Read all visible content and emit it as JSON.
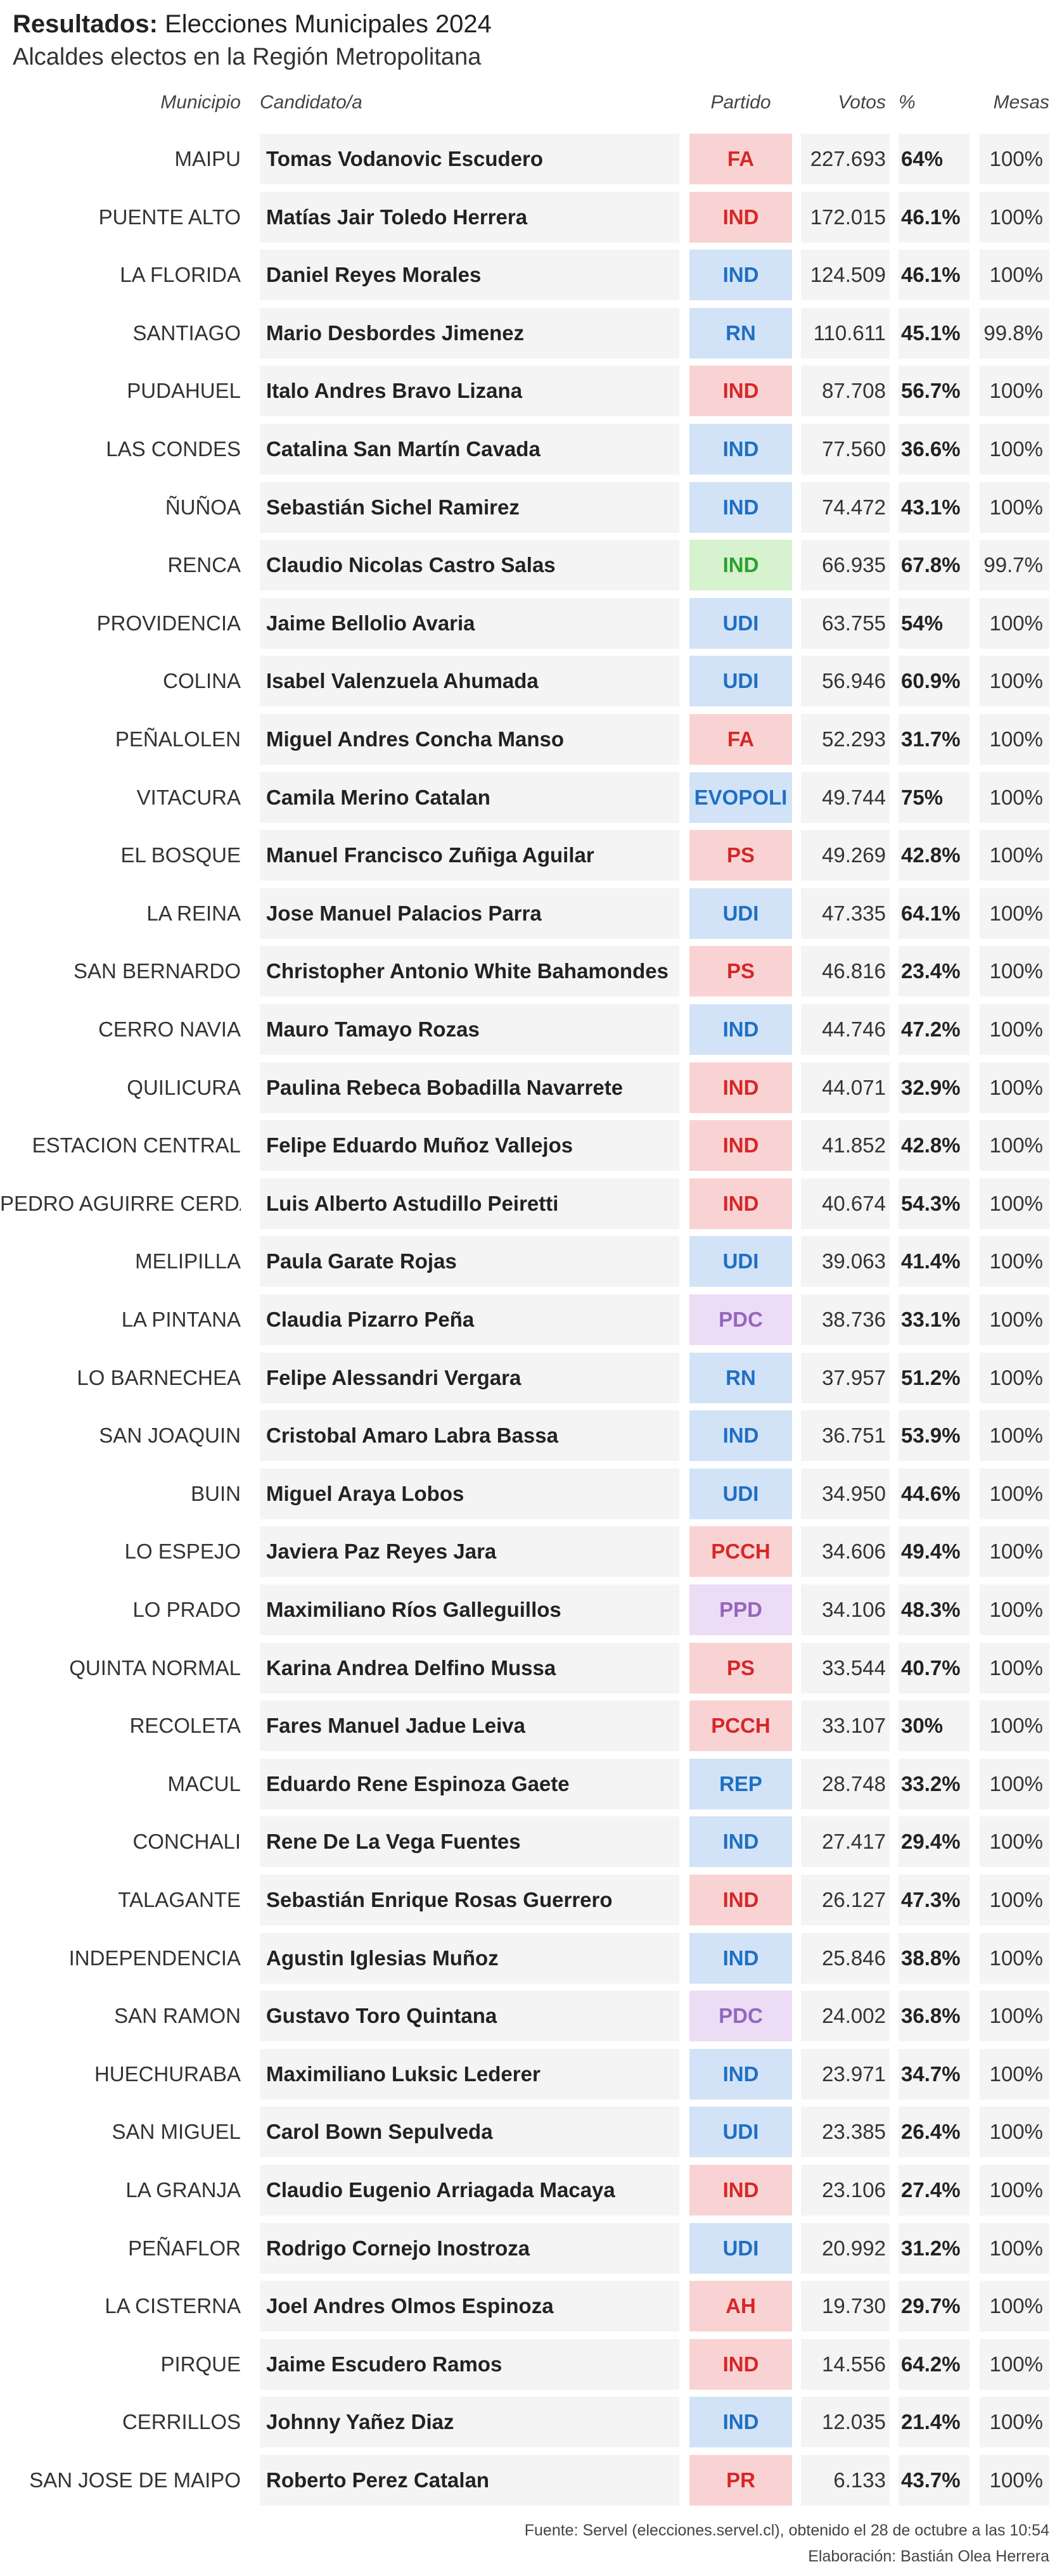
{
  "chart_data": {
    "type": "table",
    "title_bold": "Resultados:",
    "title_rest": "Elecciones Municipales 2024",
    "subtitle": "Alcaldes electos en la Región Metropolitana",
    "columns": [
      "Municipio",
      "Candidato/a",
      "Partido",
      "Votos",
      "%",
      "Mesas"
    ],
    "party_colors": {
      "red": {
        "bg": "#f9d3d3",
        "fg": "#d62728"
      },
      "blue": {
        "bg": "#d2e3f7",
        "fg": "#1f6fc4"
      },
      "green": {
        "bg": "#d6f2cf",
        "fg": "#2ca02c"
      },
      "purple": {
        "bg": "#ecdcf5",
        "fg": "#9467bd"
      }
    },
    "rows": [
      {
        "municipio": "MAIPU",
        "candidato": "Tomas Vodanovic Escudero",
        "partido": "FA",
        "color": "red",
        "votos": 227693,
        "votos_label": "227.693",
        "pct": 64,
        "pct_label": "64%",
        "mesas": "100%"
      },
      {
        "municipio": "PUENTE ALTO",
        "candidato": "Matías Jair Toledo Herrera",
        "partido": "IND",
        "color": "red",
        "votos": 172015,
        "votos_label": "172.015",
        "pct": 46.1,
        "pct_label": "46.1%",
        "mesas": "100%"
      },
      {
        "municipio": "LA FLORIDA",
        "candidato": "Daniel Reyes Morales",
        "partido": "IND",
        "color": "blue",
        "votos": 124509,
        "votos_label": "124.509",
        "pct": 46.1,
        "pct_label": "46.1%",
        "mesas": "100%"
      },
      {
        "municipio": "SANTIAGO",
        "candidato": "Mario Desbordes Jimenez",
        "partido": "RN",
        "color": "blue",
        "votos": 110611,
        "votos_label": "110.611",
        "pct": 45.1,
        "pct_label": "45.1%",
        "mesas": "99.8%"
      },
      {
        "municipio": "PUDAHUEL",
        "candidato": "Italo Andres Bravo Lizana",
        "partido": "IND",
        "color": "red",
        "votos": 87708,
        "votos_label": "87.708",
        "pct": 56.7,
        "pct_label": "56.7%",
        "mesas": "100%"
      },
      {
        "municipio": "LAS CONDES",
        "candidato": "Catalina San Martín Cavada",
        "partido": "IND",
        "color": "blue",
        "votos": 77560,
        "votos_label": "77.560",
        "pct": 36.6,
        "pct_label": "36.6%",
        "mesas": "100%"
      },
      {
        "municipio": "ÑUÑOA",
        "candidato": "Sebastián Sichel Ramirez",
        "partido": "IND",
        "color": "blue",
        "votos": 74472,
        "votos_label": "74.472",
        "pct": 43.1,
        "pct_label": "43.1%",
        "mesas": "100%"
      },
      {
        "municipio": "RENCA",
        "candidato": "Claudio Nicolas Castro Salas",
        "partido": "IND",
        "color": "green",
        "votos": 66935,
        "votos_label": "66.935",
        "pct": 67.8,
        "pct_label": "67.8%",
        "mesas": "99.7%"
      },
      {
        "municipio": "PROVIDENCIA",
        "candidato": "Jaime Bellolio Avaria",
        "partido": "UDI",
        "color": "blue",
        "votos": 63755,
        "votos_label": "63.755",
        "pct": 54,
        "pct_label": "54%",
        "mesas": "100%"
      },
      {
        "municipio": "COLINA",
        "candidato": "Isabel Valenzuela Ahumada",
        "partido": "UDI",
        "color": "blue",
        "votos": 56946,
        "votos_label": "56.946",
        "pct": 60.9,
        "pct_label": "60.9%",
        "mesas": "100%"
      },
      {
        "municipio": "PEÑALOLEN",
        "candidato": "Miguel Andres Concha Manso",
        "partido": "FA",
        "color": "red",
        "votos": 52293,
        "votos_label": "52.293",
        "pct": 31.7,
        "pct_label": "31.7%",
        "mesas": "100%"
      },
      {
        "municipio": "VITACURA",
        "candidato": "Camila Merino Catalan",
        "partido": "EVOPOLI",
        "color": "blue",
        "votos": 49744,
        "votos_label": "49.744",
        "pct": 75,
        "pct_label": "75%",
        "mesas": "100%"
      },
      {
        "municipio": "EL BOSQUE",
        "candidato": "Manuel Francisco Zuñiga Aguilar",
        "partido": "PS",
        "color": "red",
        "votos": 49269,
        "votos_label": "49.269",
        "pct": 42.8,
        "pct_label": "42.8%",
        "mesas": "100%"
      },
      {
        "municipio": "LA REINA",
        "candidato": "Jose Manuel Palacios Parra",
        "partido": "UDI",
        "color": "blue",
        "votos": 47335,
        "votos_label": "47.335",
        "pct": 64.1,
        "pct_label": "64.1%",
        "mesas": "100%"
      },
      {
        "municipio": "SAN BERNARDO",
        "candidato": "Christopher Antonio White Bahamondes",
        "partido": "PS",
        "color": "red",
        "votos": 46816,
        "votos_label": "46.816",
        "pct": 23.4,
        "pct_label": "23.4%",
        "mesas": "100%"
      },
      {
        "municipio": "CERRO NAVIA",
        "candidato": "Mauro Tamayo Rozas",
        "partido": "IND",
        "color": "blue",
        "votos": 44746,
        "votos_label": "44.746",
        "pct": 47.2,
        "pct_label": "47.2%",
        "mesas": "100%"
      },
      {
        "municipio": "QUILICURA",
        "candidato": "Paulina Rebeca Bobadilla Navarrete",
        "partido": "IND",
        "color": "red",
        "votos": 44071,
        "votos_label": "44.071",
        "pct": 32.9,
        "pct_label": "32.9%",
        "mesas": "100%"
      },
      {
        "municipio": "ESTACION CENTRAL",
        "candidato": "Felipe Eduardo Muñoz Vallejos",
        "partido": "IND",
        "color": "red",
        "votos": 41852,
        "votos_label": "41.852",
        "pct": 42.8,
        "pct_label": "42.8%",
        "mesas": "100%"
      },
      {
        "municipio": "PEDRO AGUIRRE CERDA",
        "candidato": "Luis Alberto Astudillo Peiretti",
        "partido": "IND",
        "color": "red",
        "votos": 40674,
        "votos_label": "40.674",
        "pct": 54.3,
        "pct_label": "54.3%",
        "mesas": "100%"
      },
      {
        "municipio": "MELIPILLA",
        "candidato": "Paula Garate Rojas",
        "partido": "UDI",
        "color": "blue",
        "votos": 39063,
        "votos_label": "39.063",
        "pct": 41.4,
        "pct_label": "41.4%",
        "mesas": "100%"
      },
      {
        "municipio": "LA PINTANA",
        "candidato": "Claudia Pizarro Peña",
        "partido": "PDC",
        "color": "purple",
        "votos": 38736,
        "votos_label": "38.736",
        "pct": 33.1,
        "pct_label": "33.1%",
        "mesas": "100%"
      },
      {
        "municipio": "LO BARNECHEA",
        "candidato": "Felipe Alessandri Vergara",
        "partido": "RN",
        "color": "blue",
        "votos": 37957,
        "votos_label": "37.957",
        "pct": 51.2,
        "pct_label": "51.2%",
        "mesas": "100%"
      },
      {
        "municipio": "SAN JOAQUIN",
        "candidato": "Cristobal Amaro Labra Bassa",
        "partido": "IND",
        "color": "blue",
        "votos": 36751,
        "votos_label": "36.751",
        "pct": 53.9,
        "pct_label": "53.9%",
        "mesas": "100%"
      },
      {
        "municipio": "BUIN",
        "candidato": "Miguel Araya Lobos",
        "partido": "UDI",
        "color": "blue",
        "votos": 34950,
        "votos_label": "34.950",
        "pct": 44.6,
        "pct_label": "44.6%",
        "mesas": "100%"
      },
      {
        "municipio": "LO ESPEJO",
        "candidato": "Javiera Paz Reyes Jara",
        "partido": "PCCH",
        "color": "red",
        "votos": 34606,
        "votos_label": "34.606",
        "pct": 49.4,
        "pct_label": "49.4%",
        "mesas": "100%"
      },
      {
        "municipio": "LO PRADO",
        "candidato": "Maximiliano Ríos Galleguillos",
        "partido": "PPD",
        "color": "purple",
        "votos": 34106,
        "votos_label": "34.106",
        "pct": 48.3,
        "pct_label": "48.3%",
        "mesas": "100%"
      },
      {
        "municipio": "QUINTA NORMAL",
        "candidato": "Karina Andrea Delfino Mussa",
        "partido": "PS",
        "color": "red",
        "votos": 33544,
        "votos_label": "33.544",
        "pct": 40.7,
        "pct_label": "40.7%",
        "mesas": "100%"
      },
      {
        "municipio": "RECOLETA",
        "candidato": "Fares Manuel Jadue Leiva",
        "partido": "PCCH",
        "color": "red",
        "votos": 33107,
        "votos_label": "33.107",
        "pct": 30,
        "pct_label": "30%",
        "mesas": "100%"
      },
      {
        "municipio": "MACUL",
        "candidato": "Eduardo Rene Espinoza Gaete",
        "partido": "REP",
        "color": "blue",
        "votos": 28748,
        "votos_label": "28.748",
        "pct": 33.2,
        "pct_label": "33.2%",
        "mesas": "100%"
      },
      {
        "municipio": "CONCHALI",
        "candidato": "Rene De La Vega Fuentes",
        "partido": "IND",
        "color": "blue",
        "votos": 27417,
        "votos_label": "27.417",
        "pct": 29.4,
        "pct_label": "29.4%",
        "mesas": "100%"
      },
      {
        "municipio": "TALAGANTE",
        "candidato": "Sebastián Enrique Rosas Guerrero",
        "partido": "IND",
        "color": "red",
        "votos": 26127,
        "votos_label": "26.127",
        "pct": 47.3,
        "pct_label": "47.3%",
        "mesas": "100%"
      },
      {
        "municipio": "INDEPENDENCIA",
        "candidato": "Agustin Iglesias Muñoz",
        "partido": "IND",
        "color": "blue",
        "votos": 25846,
        "votos_label": "25.846",
        "pct": 38.8,
        "pct_label": "38.8%",
        "mesas": "100%"
      },
      {
        "municipio": "SAN RAMON",
        "candidato": "Gustavo Toro Quintana",
        "partido": "PDC",
        "color": "purple",
        "votos": 24002,
        "votos_label": "24.002",
        "pct": 36.8,
        "pct_label": "36.8%",
        "mesas": "100%"
      },
      {
        "municipio": "HUECHURABA",
        "candidato": "Maximiliano Luksic Lederer",
        "partido": "IND",
        "color": "blue",
        "votos": 23971,
        "votos_label": "23.971",
        "pct": 34.7,
        "pct_label": "34.7%",
        "mesas": "100%"
      },
      {
        "municipio": "SAN MIGUEL",
        "candidato": "Carol Bown Sepulveda",
        "partido": "UDI",
        "color": "blue",
        "votos": 23385,
        "votos_label": "23.385",
        "pct": 26.4,
        "pct_label": "26.4%",
        "mesas": "100%"
      },
      {
        "municipio": "LA GRANJA",
        "candidato": "Claudio Eugenio Arriagada Macaya",
        "partido": "IND",
        "color": "red",
        "votos": 23106,
        "votos_label": "23.106",
        "pct": 27.4,
        "pct_label": "27.4%",
        "mesas": "100%"
      },
      {
        "municipio": "PEÑAFLOR",
        "candidato": "Rodrigo Cornejo Inostroza",
        "partido": "UDI",
        "color": "blue",
        "votos": 20992,
        "votos_label": "20.992",
        "pct": 31.2,
        "pct_label": "31.2%",
        "mesas": "100%"
      },
      {
        "municipio": "LA CISTERNA",
        "candidato": "Joel Andres Olmos Espinoza",
        "partido": "AH",
        "color": "red",
        "votos": 19730,
        "votos_label": "19.730",
        "pct": 29.7,
        "pct_label": "29.7%",
        "mesas": "100%"
      },
      {
        "municipio": "PIRQUE",
        "candidato": "Jaime Escudero Ramos",
        "partido": "IND",
        "color": "red",
        "votos": 14556,
        "votos_label": "14.556",
        "pct": 64.2,
        "pct_label": "64.2%",
        "mesas": "100%"
      },
      {
        "municipio": "CERRILLOS",
        "candidato": "Johnny Yañez Diaz",
        "partido": "IND",
        "color": "blue",
        "votos": 12035,
        "votos_label": "12.035",
        "pct": 21.4,
        "pct_label": "21.4%",
        "mesas": "100%"
      },
      {
        "municipio": "SAN JOSE DE MAIPO",
        "candidato": "Roberto Perez Catalan",
        "partido": "PR",
        "color": "red",
        "votos": 6133,
        "votos_label": "6.133",
        "pct": 43.7,
        "pct_label": "43.7%",
        "mesas": "100%"
      }
    ],
    "source": "Fuente: Servel (elecciones.servel.cl), obtenido el 28 de octubre a las 10:54",
    "credit": "Elaboración: Bastián Olea Herrera"
  }
}
